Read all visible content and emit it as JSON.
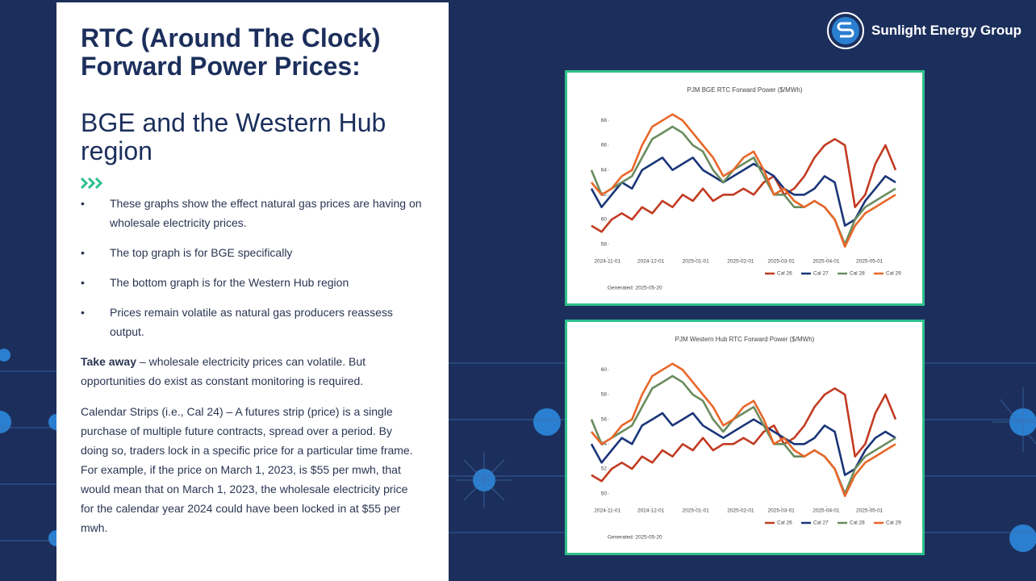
{
  "header": {
    "title_lines": [
      "RTC (Around The Clock)",
      "Forward Power Prices:"
    ],
    "subtitle_lines": [
      "BGE and the Western Hub",
      "region"
    ]
  },
  "logo": {
    "text": "Sunlight Energy Group"
  },
  "bullets": [
    "These graphs show the effect natural gas prices are having on wholesale electricity prices.",
    "The top graph is for BGE specifically",
    "The bottom graph is for the Western Hub region",
    "Prices remain volatile as natural gas producers reassess output."
  ],
  "takeaway": {
    "label": "Take away",
    "text": " – wholesale electricity prices can volatile. But opportunities do exist as constant monitoring is required."
  },
  "calendar": "Calendar Strips (i.e., Cal 24) – A futures strip (price) is a single purchase of multiple future contracts, spread over a period. By doing so, traders lock in a specific price for a particular time frame. For example, if the price on March 1, 2023, is $55 per mwh, that would mean that on March 1, 2023, the wholesale electricity price for the calendar year 2024 could have been locked in at $55 per mwh.",
  "chart_data": [
    {
      "type": "line",
      "title": "PJM BGE RTC Forward Power ($/MWh)",
      "footnote": "Generated: 2025-05-20",
      "x": [
        "2024-10-21",
        "2024-10-28",
        "2024-11-04",
        "2024-11-11",
        "2024-11-18",
        "2024-11-25",
        "2024-12-02",
        "2024-12-09",
        "2024-12-16",
        "2024-12-23",
        "2024-12-30",
        "2025-01-06",
        "2025-01-13",
        "2025-01-20",
        "2025-01-27",
        "2025-02-03",
        "2025-02-10",
        "2025-02-17",
        "2025-02-24",
        "2025-03-03",
        "2025-03-10",
        "2025-03-17",
        "2025-03-24",
        "2025-03-31",
        "2025-04-07",
        "2025-04-14",
        "2025-04-21",
        "2025-04-28",
        "2025-05-05",
        "2025-05-12",
        "2025-05-19"
      ],
      "xlim": [
        "2024-10-21",
        "2025-05-19"
      ],
      "xticks": [
        "2024-11-01",
        "2024-12-01",
        "2025-01-01",
        "2025-02-01",
        "2025-03-01",
        "2025-04-01",
        "2025-05-01"
      ],
      "ylim": [
        57,
        69
      ],
      "yticks": [
        58,
        60,
        62,
        64,
        66,
        68
      ],
      "legend": "bottom-right",
      "series": [
        {
          "name": "Cal 26",
          "color": "#c23b22",
          "values": [
            59.5,
            59,
            60,
            60.5,
            60,
            61,
            60.5,
            61.5,
            61,
            62,
            61.5,
            62.5,
            61.5,
            62,
            62,
            62.5,
            62,
            63,
            63.5,
            62,
            62.5,
            63.5,
            65,
            66,
            66.5,
            66,
            61,
            62,
            64.5,
            66,
            64
          ]
        },
        {
          "name": "Cal 27",
          "color": "#1a3578",
          "values": [
            62.5,
            61,
            62,
            63,
            62.5,
            64,
            64.5,
            65,
            64,
            64.5,
            65,
            64,
            63.5,
            63,
            63.5,
            64,
            64.5,
            64,
            63.5,
            62.5,
            62,
            62,
            62.5,
            63.5,
            63,
            59.5,
            60,
            61.5,
            62.5,
            63.5,
            63
          ]
        },
        {
          "name": "Cal 28",
          "color": "#6a8c5e",
          "values": [
            64,
            62,
            62.5,
            63,
            63.5,
            65,
            66.5,
            67,
            67.5,
            67,
            66,
            65.5,
            64,
            63,
            64,
            64.5,
            65,
            63.5,
            62,
            62,
            61,
            61,
            61.5,
            61,
            60,
            58,
            60,
            61,
            61.5,
            62,
            62.5
          ]
        },
        {
          "name": "Cal 29",
          "color": "#e8672a",
          "values": [
            63,
            62,
            62.5,
            63.5,
            64,
            66,
            67.5,
            68,
            68.5,
            68,
            67,
            66,
            65,
            63.5,
            64,
            65,
            65.5,
            64,
            62,
            62.5,
            61.5,
            61,
            61.5,
            61,
            60,
            57.8,
            59.5,
            60.5,
            61,
            61.5,
            62
          ]
        }
      ]
    },
    {
      "type": "line",
      "title": "PJM Western Hub RTC Forward Power ($/MWh)",
      "footnote": "Generated: 2025-05-20",
      "x": [
        "2024-10-21",
        "2024-10-28",
        "2024-11-04",
        "2024-11-11",
        "2024-11-18",
        "2024-11-25",
        "2024-12-02",
        "2024-12-09",
        "2024-12-16",
        "2024-12-23",
        "2024-12-30",
        "2025-01-06",
        "2025-01-13",
        "2025-01-20",
        "2025-01-27",
        "2025-02-03",
        "2025-02-10",
        "2025-02-17",
        "2025-02-24",
        "2025-03-03",
        "2025-03-10",
        "2025-03-17",
        "2025-03-24",
        "2025-03-31",
        "2025-04-07",
        "2025-04-14",
        "2025-04-21",
        "2025-04-28",
        "2025-05-05",
        "2025-05-12",
        "2025-05-19"
      ],
      "xlim": [
        "2024-10-21",
        "2025-05-19"
      ],
      "xticks": [
        "2024-11-01",
        "2024-12-01",
        "2025-01-01",
        "2025-02-01",
        "2025-03-01",
        "2025-04-01",
        "2025-05-01"
      ],
      "ylim": [
        49,
        61
      ],
      "yticks": [
        50,
        52,
        54,
        56,
        58,
        60
      ],
      "legend": "bottom-right",
      "series": [
        {
          "name": "Cal 26",
          "color": "#c23b22",
          "values": [
            51.5,
            51,
            52,
            52.5,
            52,
            53,
            52.5,
            53.5,
            53,
            54,
            53.5,
            54.5,
            53.5,
            54,
            54,
            54.5,
            54,
            55,
            55.5,
            54,
            54.5,
            55.5,
            57,
            58,
            58.5,
            58,
            53,
            54,
            56.5,
            58,
            56
          ]
        },
        {
          "name": "Cal 27",
          "color": "#1a3578",
          "values": [
            54,
            52.5,
            53.5,
            54.5,
            54,
            55.5,
            56,
            56.5,
            55.5,
            56,
            56.5,
            55.5,
            55,
            54.5,
            55,
            55.5,
            56,
            55.5,
            55,
            54.5,
            54,
            54,
            54.5,
            55.5,
            55,
            51.5,
            52,
            53.5,
            54.5,
            55,
            54.5
          ]
        },
        {
          "name": "Cal 28",
          "color": "#6a8c5e",
          "values": [
            56,
            54,
            54.5,
            55,
            55.5,
            57,
            58.5,
            59,
            59.5,
            59,
            58,
            57.5,
            56,
            55,
            56,
            56.5,
            57,
            55.5,
            54,
            54,
            53,
            53,
            53.5,
            53,
            52,
            50,
            52,
            53,
            53.5,
            54,
            54.5
          ]
        },
        {
          "name": "Cal 29",
          "color": "#e8672a",
          "values": [
            55,
            54,
            54.5,
            55.5,
            56,
            58,
            59.5,
            60,
            60.5,
            60,
            59,
            58,
            57,
            55.5,
            56,
            57,
            57.5,
            56,
            54,
            54.5,
            53.5,
            53,
            53.5,
            53,
            52,
            49.8,
            51.5,
            52.5,
            53,
            53.5,
            54
          ]
        }
      ]
    }
  ]
}
